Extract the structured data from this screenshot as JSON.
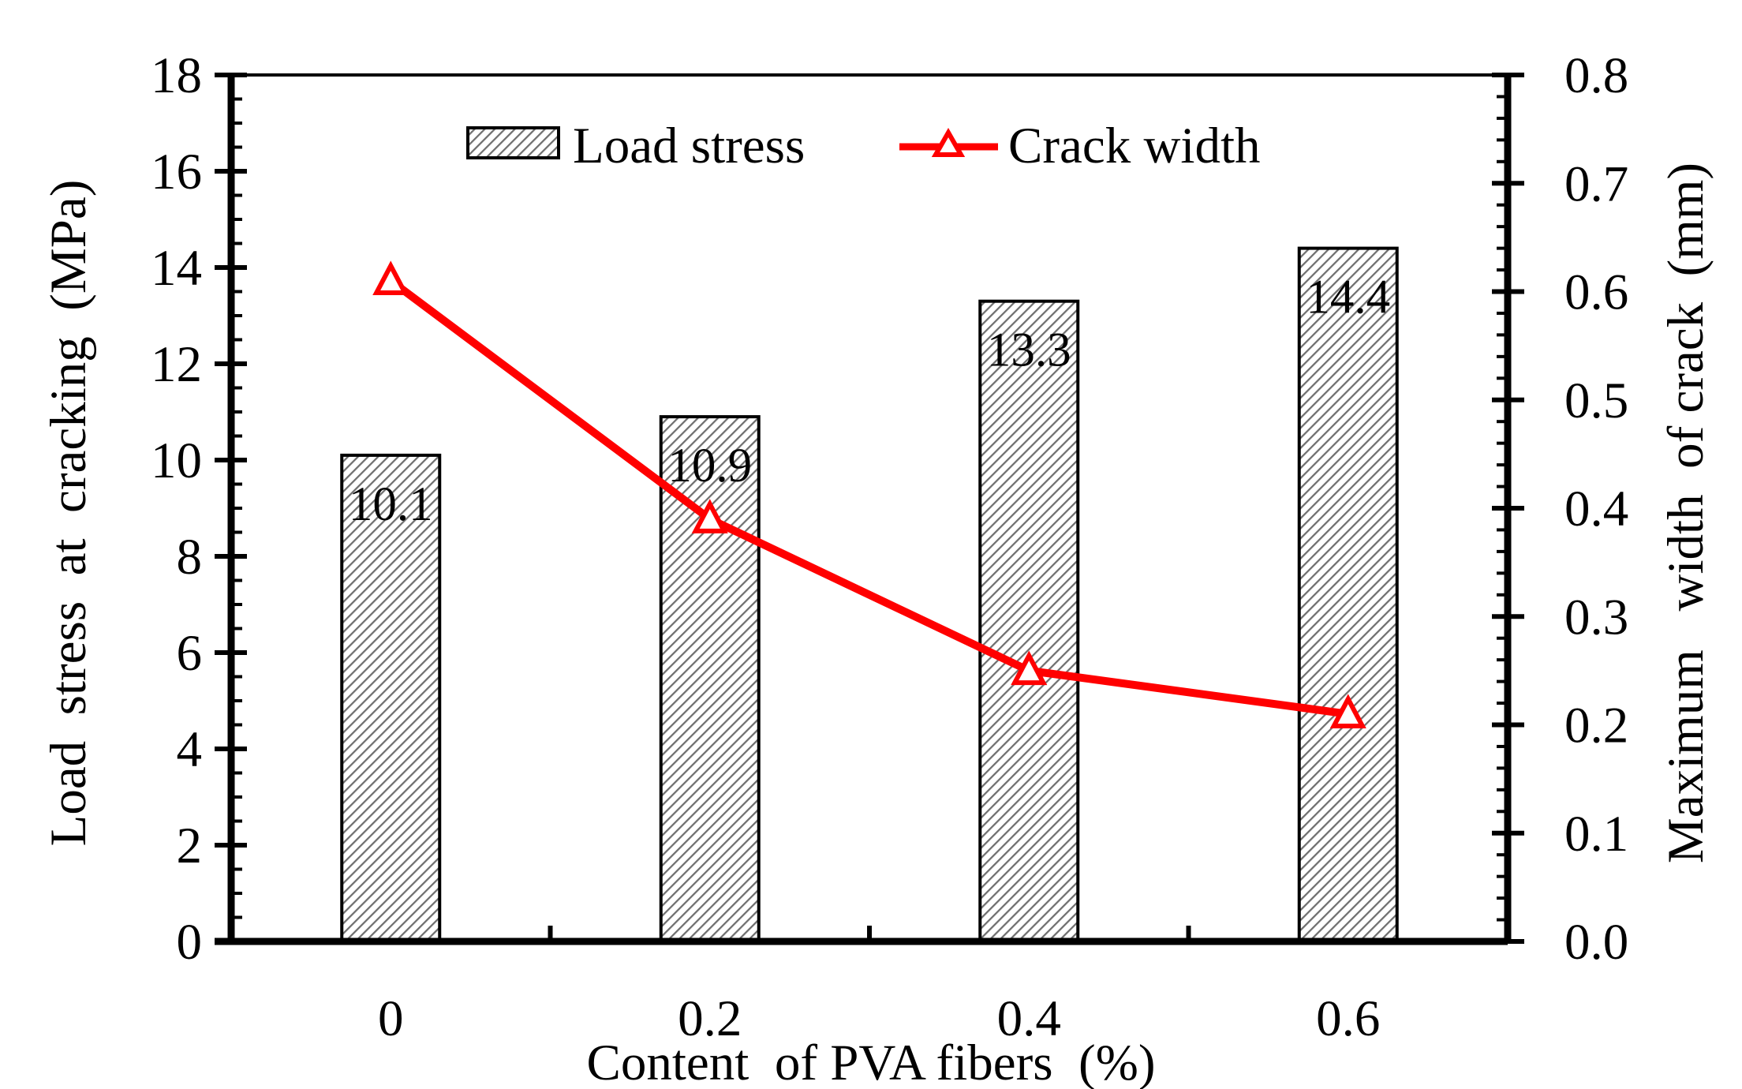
{
  "chart_data": {
    "type": "bar+line",
    "xlabel": "Content  of PVA fibers  (%)",
    "ylabel_left": "Load  stress  at  cracking  (MPa)",
    "ylabel_right": "Maximum   width  of crack  (mm)",
    "categories": [
      "0",
      "0.2",
      "0.4",
      "0.6"
    ],
    "ylim_left": [
      0,
      18
    ],
    "ylim_right": [
      0.0,
      0.8
    ],
    "yticks_left": [
      "0",
      "2",
      "4",
      "6",
      "8",
      "10",
      "12",
      "14",
      "16",
      "18"
    ],
    "yticks_right": [
      "0.0",
      "0.1",
      "0.2",
      "0.3",
      "0.4",
      "0.5",
      "0.6",
      "0.7",
      "0.8"
    ],
    "series": [
      {
        "name": "Load stress",
        "type": "bar",
        "axis": "left",
        "values": [
          10.1,
          10.9,
          13.3,
          14.4
        ],
        "labels": [
          "10.1",
          "10.9",
          "13.3",
          "14.4"
        ],
        "fill": "hatched"
      },
      {
        "name": "Crack width",
        "type": "line",
        "axis": "right",
        "values": [
          0.61,
          0.39,
          0.25,
          0.21
        ],
        "color": "#ff0000",
        "marker": "triangle-open"
      }
    ],
    "legend": {
      "position": "top-center",
      "entries": [
        "Load stress",
        "Crack width"
      ]
    }
  }
}
